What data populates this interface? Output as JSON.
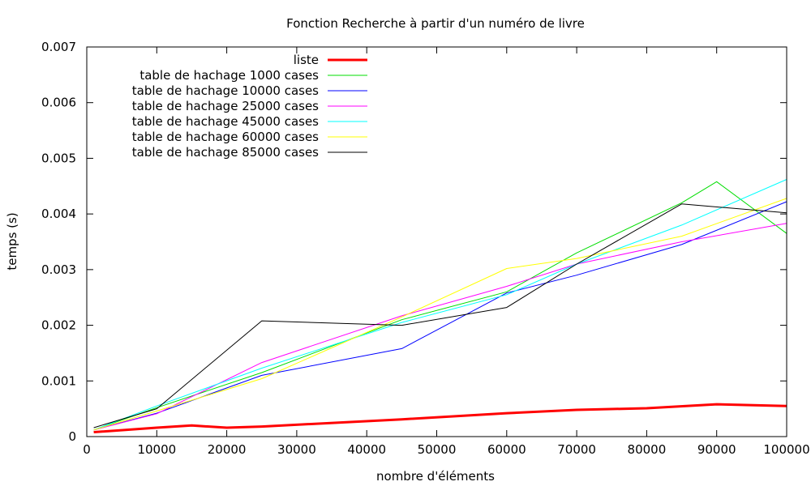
{
  "chart_data": {
    "type": "line",
    "title": "Fonction Recherche à partir d'un numéro de livre",
    "xlabel": "nombre d'éléments",
    "ylabel": "temps (s)",
    "xlim": [
      0,
      100000
    ],
    "ylim": [
      0,
      0.007
    ],
    "x_ticks": [
      0,
      10000,
      20000,
      30000,
      40000,
      50000,
      60000,
      70000,
      80000,
      90000,
      100000
    ],
    "x_tick_labels": [
      "0",
      "10000",
      "20000",
      "30000",
      "40000",
      "50000",
      "60000",
      "70000",
      "80000",
      "90000",
      "100000"
    ],
    "y_ticks": [
      0,
      0.001,
      0.002,
      0.003,
      0.004,
      0.005,
      0.006,
      0.007
    ],
    "y_tick_labels": [
      "0",
      "0.001",
      "0.002",
      "0.003",
      "0.004",
      "0.005",
      "0.006",
      "0.007"
    ],
    "grid": false,
    "legend_position": "top-left",
    "series": [
      {
        "name": "liste",
        "color": "#ff0000",
        "thick": true,
        "x": [
          1000,
          10000,
          15000,
          20000,
          25000,
          45000,
          60000,
          70000,
          80000,
          90000,
          100000
        ],
        "y": [
          8e-05,
          0.00016,
          0.0002,
          0.00016,
          0.00018,
          0.00031,
          0.00042,
          0.00048,
          0.00051,
          0.00058,
          0.00055
        ]
      },
      {
        "name": "table de hachage 1000 cases",
        "color": "#00dd00",
        "x": [
          1000,
          10000,
          25000,
          45000,
          60000,
          70000,
          85000,
          90000,
          100000
        ],
        "y": [
          0.00012,
          0.00052,
          0.00115,
          0.0021,
          0.0026,
          0.0033,
          0.0042,
          0.00458,
          0.00365
        ]
      },
      {
        "name": "table de hachage 10000 cases",
        "color": "#0000ff",
        "x": [
          1000,
          10000,
          25000,
          45000,
          60000,
          70000,
          85000,
          100000
        ],
        "y": [
          0.00012,
          0.00042,
          0.0011,
          0.00158,
          0.00258,
          0.0029,
          0.00345,
          0.00422
        ]
      },
      {
        "name": "table de hachage 25000 cases",
        "color": "#ff00ff",
        "x": [
          1000,
          10000,
          25000,
          45000,
          60000,
          70000,
          85000,
          100000
        ],
        "y": [
          0.00012,
          0.00041,
          0.00133,
          0.00217,
          0.0027,
          0.0031,
          0.0035,
          0.00383
        ]
      },
      {
        "name": "table de hachage 45000 cases",
        "color": "#00ffff",
        "x": [
          1000,
          10000,
          25000,
          45000,
          60000,
          70000,
          85000,
          100000
        ],
        "y": [
          0.00012,
          0.00055,
          0.00123,
          0.00205,
          0.00255,
          0.0031,
          0.0038,
          0.00462
        ]
      },
      {
        "name": "table de hachage 60000 cases",
        "color": "#ffff00",
        "x": [
          1000,
          10000,
          25000,
          45000,
          60000,
          70000,
          85000,
          100000
        ],
        "y": [
          0.00012,
          0.00046,
          0.00104,
          0.00215,
          0.00302,
          0.0032,
          0.0036,
          0.00428
        ]
      },
      {
        "name": "table de hachage 85000 cases",
        "color": "#000000",
        "x": [
          1000,
          10000,
          25000,
          45000,
          60000,
          70000,
          85000,
          100000
        ],
        "y": [
          0.00016,
          0.0005,
          0.00208,
          0.002,
          0.00232,
          0.0031,
          0.00418,
          0.00402
        ]
      }
    ]
  }
}
